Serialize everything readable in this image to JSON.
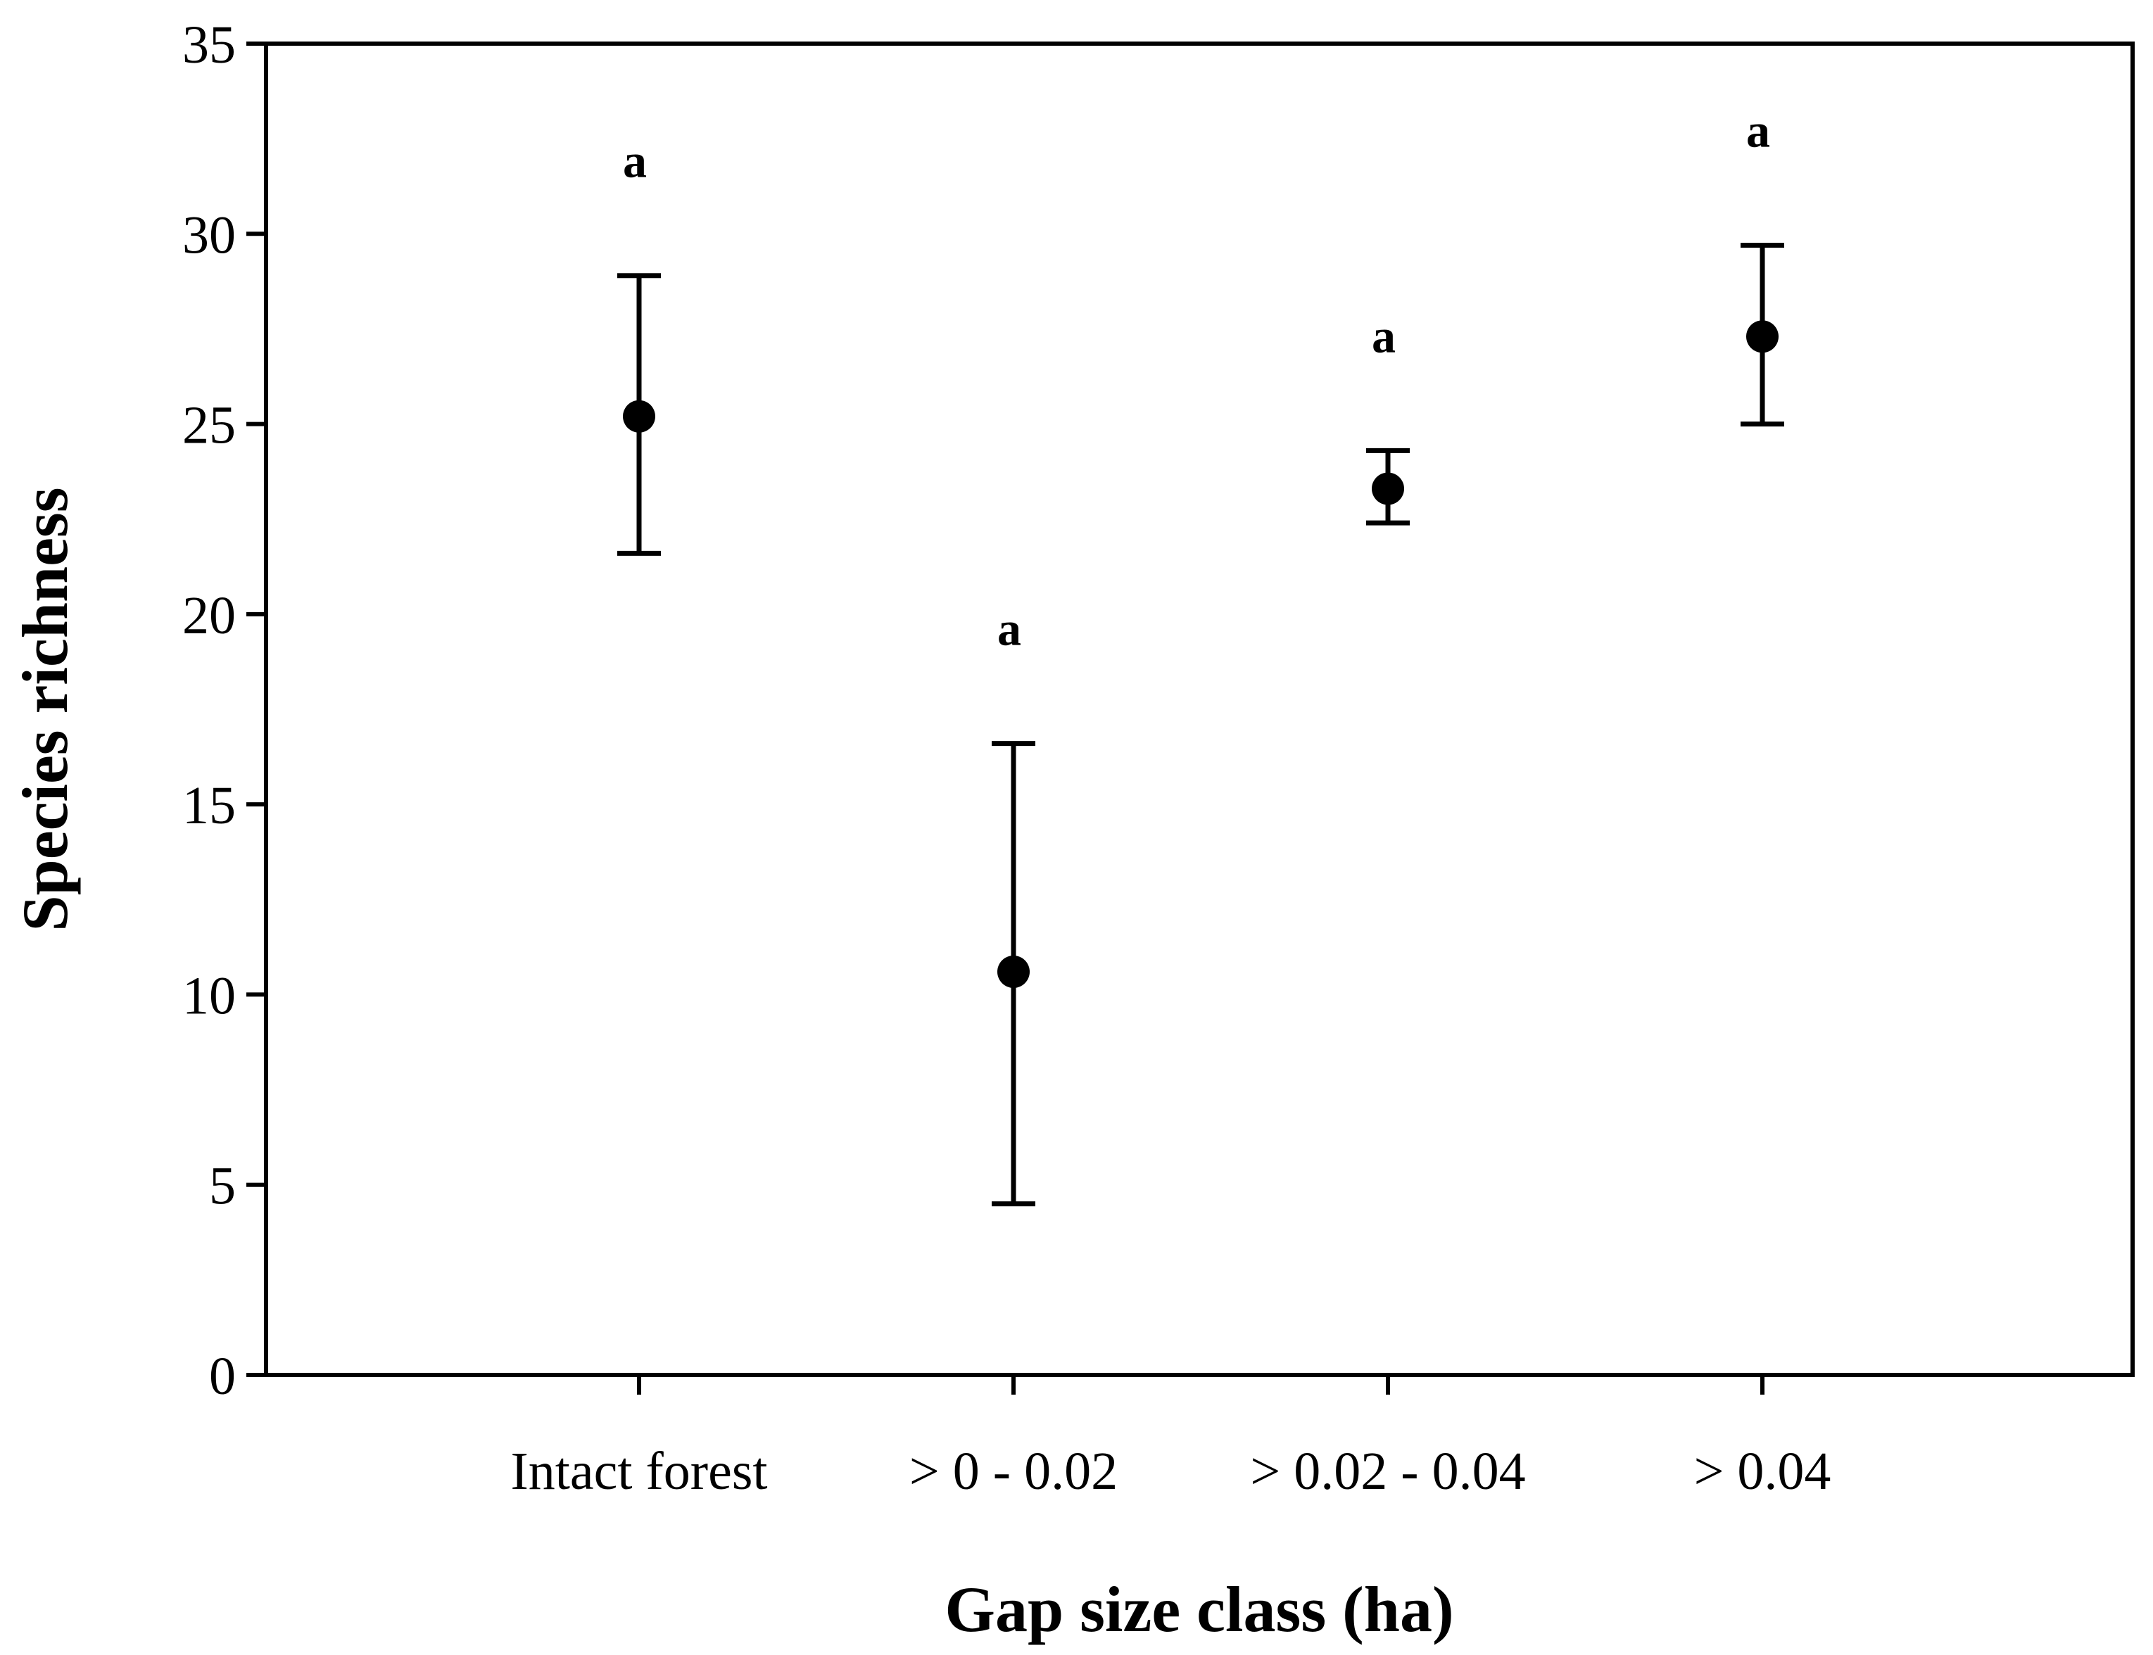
{
  "chart_data": {
    "type": "scatter",
    "title": "",
    "xlabel": "Gap size class (ha)",
    "ylabel": "Species richness",
    "categories": [
      "Intact forest",
      "> 0 - 0.02",
      "> 0.02 - 0.04",
      "> 0.04"
    ],
    "series": [
      {
        "values": [
          25.2,
          10.6,
          23.3,
          27.3
        ],
        "error_lower": [
          21.6,
          4.5,
          22.4,
          25.0
        ],
        "error_upper": [
          28.9,
          16.6,
          24.3,
          29.7
        ],
        "significance_letters": [
          "a",
          "a",
          "a",
          "a"
        ]
      }
    ],
    "ylim": [
      0,
      35
    ],
    "yticks": [
      0,
      5,
      10,
      15,
      20,
      25,
      30,
      35
    ],
    "grid": false,
    "legend": "none",
    "colors": {
      "marker": "#000000",
      "axis": "#000000"
    }
  }
}
